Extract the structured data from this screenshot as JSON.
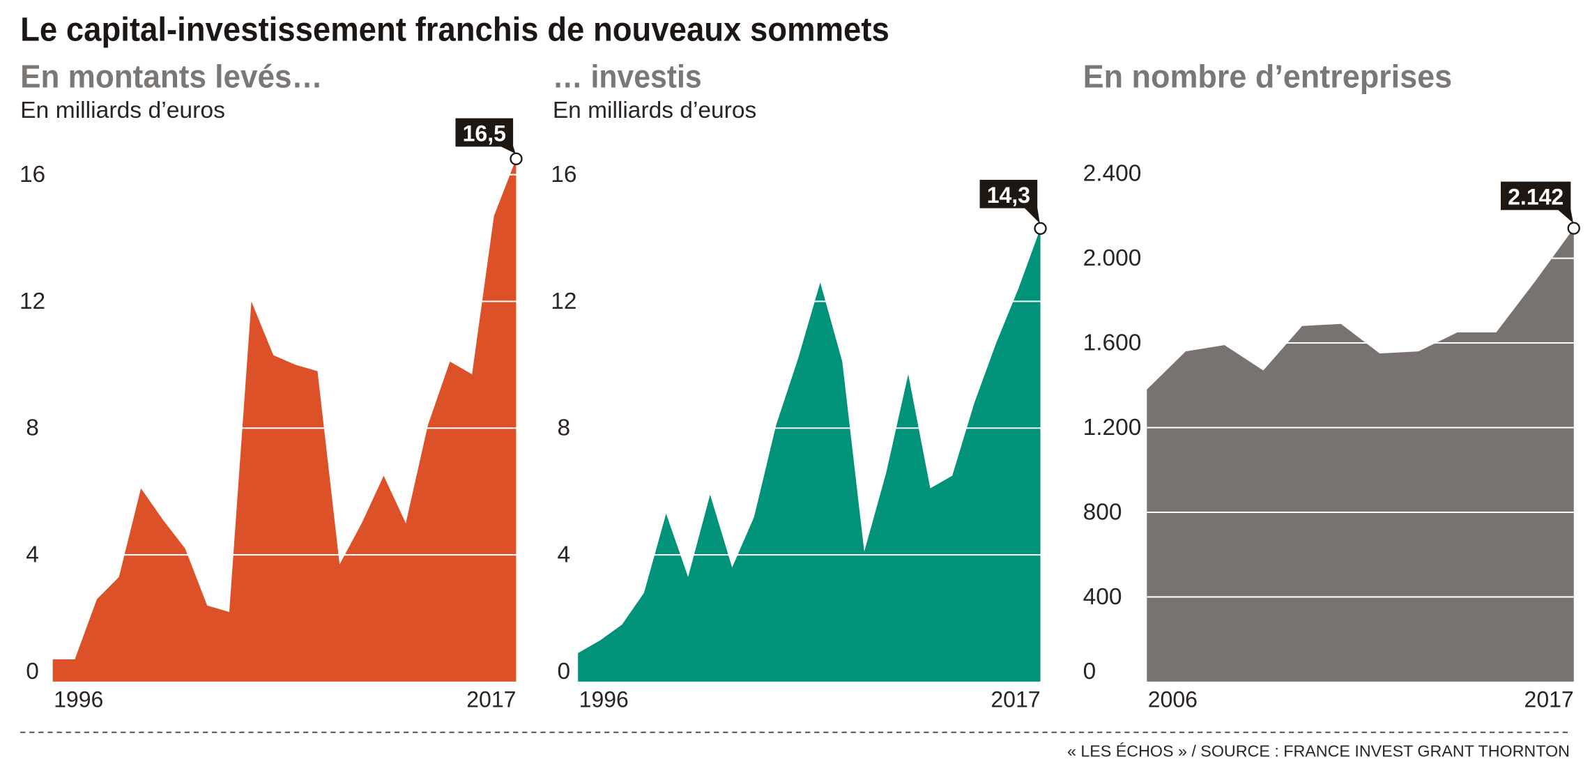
{
  "title": "Le capital-investissement franchis de nouveaux sommets",
  "source": "« LES ÉCHOS » / SOURCE : FRANCE INVEST GRANT THORNTON",
  "colors": {
    "text": "#1c1714",
    "heading": "#7b7775",
    "callout": "#1e1712",
    "gridline": "#ffffff"
  },
  "chart_data": [
    {
      "type": "area",
      "title": "En montants levés…",
      "subtitle": "En milliards d’euros",
      "color": "#dd5128",
      "x": [
        1996,
        1997,
        1998,
        1999,
        2000,
        2001,
        2002,
        2003,
        2004,
        2005,
        2006,
        2007,
        2008,
        2009,
        2010,
        2011,
        2012,
        2013,
        2014,
        2015,
        2016,
        2017
      ],
      "values": [
        0.7,
        0.7,
        2.6,
        3.3,
        6.1,
        5.1,
        4.2,
        2.4,
        2.2,
        12.0,
        10.3,
        10.0,
        9.8,
        3.7,
        5.0,
        6.5,
        5.0,
        8.1,
        10.1,
        9.7,
        14.7,
        16.5
      ],
      "ylim": [
        0,
        16
      ],
      "yticks": [
        16,
        12,
        8,
        4,
        0
      ],
      "ytick_labels": [
        "16",
        "12",
        "8",
        "4",
        "0"
      ],
      "xticks": [
        1996,
        2017
      ],
      "xtick_labels": [
        "1996",
        "2017"
      ],
      "grid": true,
      "highlight": {
        "x": 2017,
        "label": "16,5"
      }
    },
    {
      "type": "area",
      "title": "… investis",
      "subtitle": "En milliards d’euros",
      "color": "#00937a",
      "x": [
        1996,
        1997,
        1998,
        1999,
        2000,
        2001,
        2002,
        2003,
        2004,
        2005,
        2006,
        2007,
        2008,
        2009,
        2010,
        2011,
        2012,
        2013,
        2014,
        2015,
        2016,
        2017
      ],
      "values": [
        0.9,
        1.3,
        1.8,
        2.8,
        5.3,
        3.3,
        5.9,
        3.6,
        5.2,
        8.1,
        10.2,
        12.6,
        10.1,
        4.1,
        6.6,
        9.7,
        6.1,
        6.5,
        8.8,
        10.7,
        12.4,
        14.3
      ],
      "ylim": [
        0,
        16
      ],
      "yticks": [
        16,
        12,
        8,
        4,
        0
      ],
      "ytick_labels": [
        "16",
        "12",
        "8",
        "4",
        "0"
      ],
      "xticks": [
        1996,
        2017
      ],
      "xtick_labels": [
        "1996",
        "2017"
      ],
      "grid": true,
      "highlight": {
        "x": 2017,
        "label": "14,3"
      }
    },
    {
      "type": "area",
      "title": "En nombre d’entreprises",
      "color": "#787371",
      "x": [
        2006,
        2007,
        2008,
        2009,
        2010,
        2011,
        2012,
        2013,
        2014,
        2015,
        2016,
        2017
      ],
      "values": [
        1380,
        1560,
        1590,
        1470,
        1680,
        1690,
        1550,
        1560,
        1650,
        1650,
        1890,
        2142
      ],
      "ylim": [
        0,
        2400
      ],
      "yticks": [
        2400,
        2000,
        1600,
        1200,
        800,
        400,
        0
      ],
      "ytick_labels": [
        "2.400",
        "2.000",
        "1.600",
        "1.200",
        "800",
        "400",
        "0"
      ],
      "xticks": [
        2006,
        2017
      ],
      "xtick_labels": [
        "2006",
        "2017"
      ],
      "grid": true,
      "highlight": {
        "x": 2017,
        "label": "2.142"
      }
    }
  ]
}
